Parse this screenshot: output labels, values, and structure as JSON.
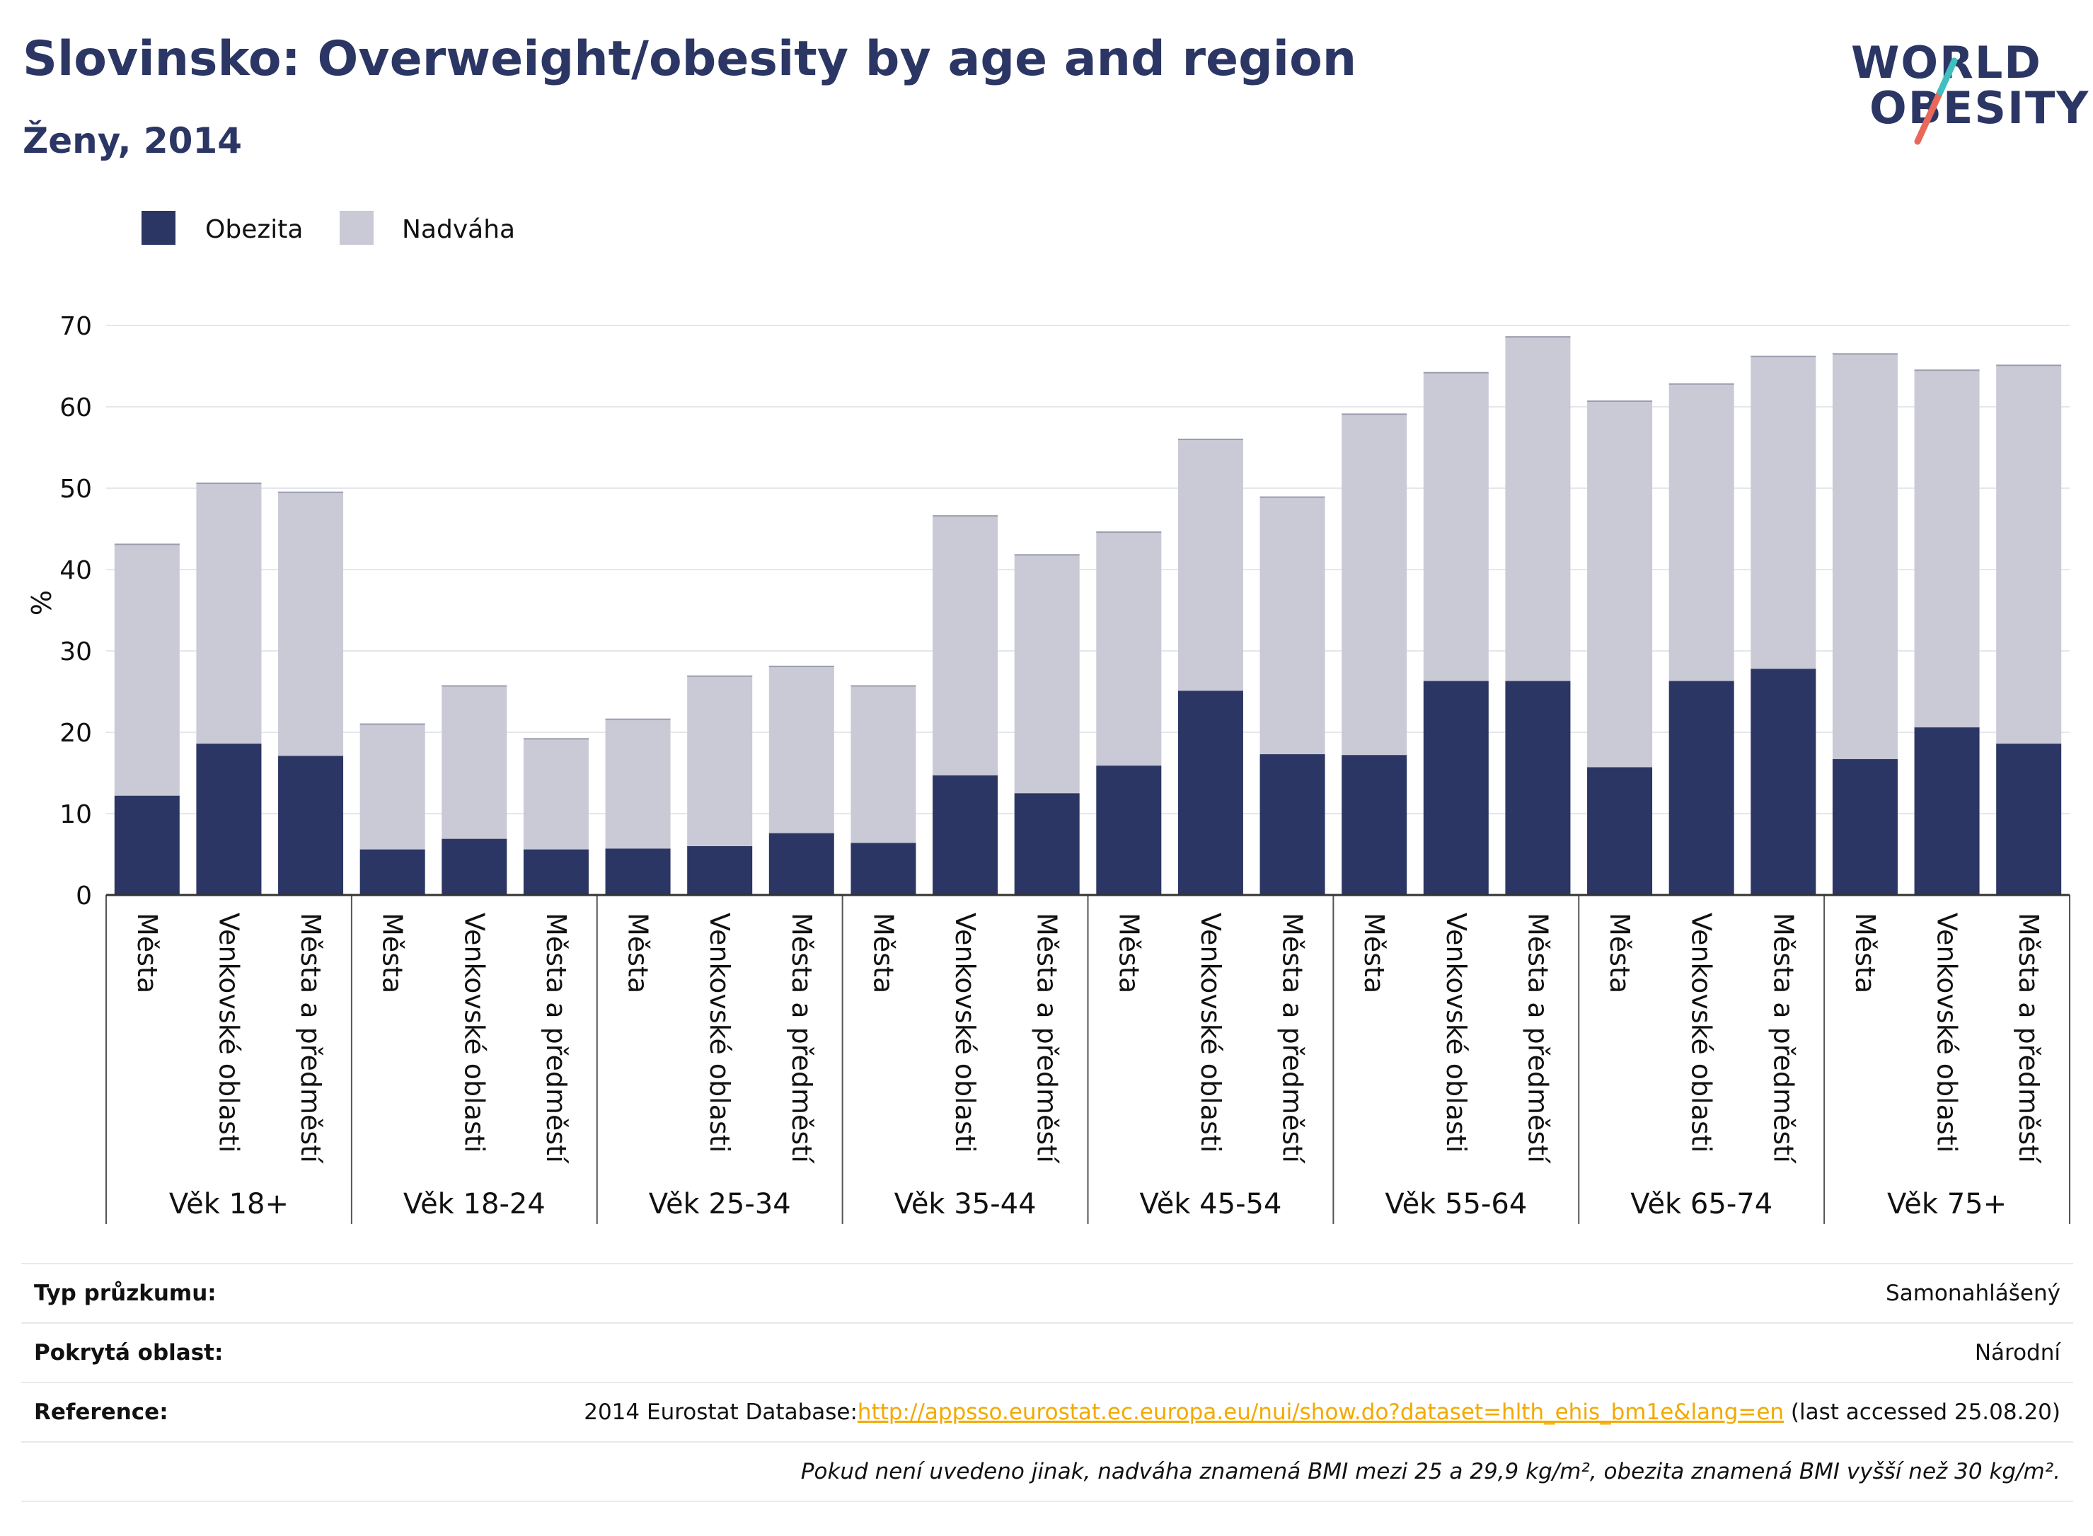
{
  "header": {
    "title": "Slovinsko: Overweight/obesity by age and region",
    "subtitle": "Ženy, 2014"
  },
  "logo": {
    "line1": "WORLD",
    "line2": "OBESITY"
  },
  "colors": {
    "obesity": "#2b3664",
    "overweight": "#c9cad6",
    "title": "#2b3664",
    "logo_accent_red": "#e8685a",
    "logo_accent_teal": "#3fbfbf",
    "link": "#f2a900"
  },
  "chart_data": {
    "type": "bar",
    "stacked": true,
    "ylabel": "%",
    "ylim": [
      0,
      70
    ],
    "yticks": [
      0,
      10,
      20,
      30,
      40,
      50,
      60,
      70
    ],
    "grid": true,
    "legend_position": "top-left",
    "series": [
      {
        "name": "Obezita",
        "color": "#2b3664"
      },
      {
        "name": "Nadváha",
        "color": "#c9cad6"
      }
    ],
    "groups": [
      {
        "label": "Věk 18+",
        "bars": [
          {
            "category": "Města",
            "obezita": 12.2,
            "nadvaha": 30.9
          },
          {
            "category": "Venkovské oblasti",
            "obezita": 18.6,
            "nadvaha": 32.0
          },
          {
            "category": "Města a předměstí",
            "obezita": 17.1,
            "nadvaha": 32.4
          }
        ]
      },
      {
        "label": "Věk 18-24",
        "bars": [
          {
            "category": "Města",
            "obezita": 5.6,
            "nadvaha": 15.4
          },
          {
            "category": "Venkovské oblasti",
            "obezita": 6.9,
            "nadvaha": 18.8
          },
          {
            "category": "Města a předměstí",
            "obezita": 5.6,
            "nadvaha": 13.6
          }
        ]
      },
      {
        "label": "Věk 25-34",
        "bars": [
          {
            "category": "Města",
            "obezita": 5.7,
            "nadvaha": 15.9
          },
          {
            "category": "Venkovské oblasti",
            "obezita": 6.0,
            "nadvaha": 20.9
          },
          {
            "category": "Města a předměstí",
            "obezita": 7.6,
            "nadvaha": 20.5
          }
        ]
      },
      {
        "label": "Věk 35-44",
        "bars": [
          {
            "category": "Města",
            "obezita": 6.4,
            "nadvaha": 19.3
          },
          {
            "category": "Venkovské oblasti",
            "obezita": 14.7,
            "nadvaha": 31.9
          },
          {
            "category": "Města a předměstí",
            "obezita": 12.5,
            "nadvaha": 29.3
          }
        ]
      },
      {
        "label": "Věk 45-54",
        "bars": [
          {
            "category": "Města",
            "obezita": 15.9,
            "nadvaha": 28.7
          },
          {
            "category": "Venkovské oblasti",
            "obezita": 25.1,
            "nadvaha": 30.9
          },
          {
            "category": "Města a předměstí",
            "obezita": 17.3,
            "nadvaha": 31.6
          }
        ]
      },
      {
        "label": "Věk 55-64",
        "bars": [
          {
            "category": "Města",
            "obezita": 17.2,
            "nadvaha": 41.9
          },
          {
            "category": "Venkovské oblasti",
            "obezita": 26.3,
            "nadvaha": 37.9
          },
          {
            "category": "Města a předměstí",
            "obezita": 26.3,
            "nadvaha": 42.3
          }
        ]
      },
      {
        "label": "Věk 65-74",
        "bars": [
          {
            "category": "Města",
            "obezita": 15.7,
            "nadvaha": 45.0
          },
          {
            "category": "Venkovské oblasti",
            "obezita": 26.3,
            "nadvaha": 36.5
          },
          {
            "category": "Města a předměstí",
            "obezita": 27.8,
            "nadvaha": 38.4
          }
        ]
      },
      {
        "label": "Věk 75+",
        "bars": [
          {
            "category": "Města",
            "obezita": 16.7,
            "nadvaha": 49.8
          },
          {
            "category": "Venkovské oblasti",
            "obezita": 20.6,
            "nadvaha": 43.9
          },
          {
            "category": "Města a předměstí",
            "obezita": 18.6,
            "nadvaha": 46.5
          }
        ]
      }
    ]
  },
  "info_table": [
    {
      "label": "Typ průzkumu:",
      "value": "Samonahlášený"
    },
    {
      "label": "Pokrytá oblast:",
      "value": "Národní"
    },
    {
      "label": "Reference:",
      "value_prefix": "2014 Eurostat Database:",
      "link": "http://appsso.eurostat.ec.europa.eu/nui/show.do?dataset=hlth_ehis_bm1e&lang=en",
      "value_suffix": " (last accessed 25.08.20)"
    }
  ],
  "footnote": "Pokud není uvedeno jinak, nadváha znamená BMI mezi 25 a 29,9 kg/m², obezita znamená BMI vyšší než 30 kg/m²."
}
